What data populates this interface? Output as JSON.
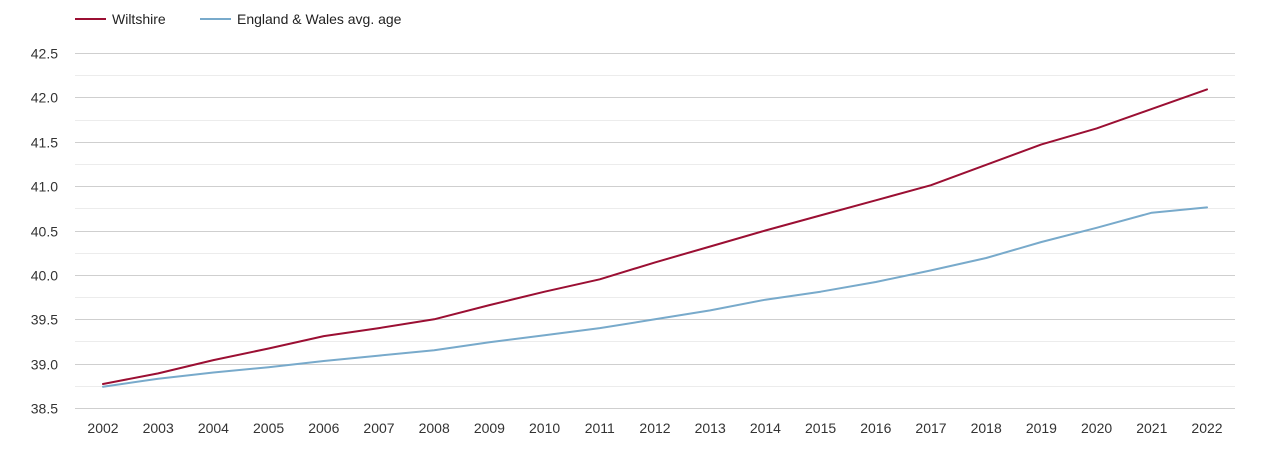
{
  "chart_data": {
    "type": "line",
    "title": "",
    "xlabel": "",
    "ylabel": "",
    "legend_position": "top-left",
    "grid": true,
    "x": [
      "2002",
      "2003",
      "2004",
      "2005",
      "2006",
      "2007",
      "2008",
      "2009",
      "2010",
      "2011",
      "2012",
      "2013",
      "2014",
      "2015",
      "2016",
      "2017",
      "2018",
      "2019",
      "2020",
      "2021",
      "2022"
    ],
    "ylim": [
      38.5,
      42.5
    ],
    "yticks": [
      "38.5",
      "39.0",
      "39.5",
      "40.0",
      "40.5",
      "41.0",
      "41.5",
      "42.0",
      "42.5"
    ],
    "series": [
      {
        "name": "Wiltshire",
        "color": "#9b0f33",
        "values": [
          38.77,
          38.89,
          39.04,
          39.17,
          39.31,
          39.4,
          39.5,
          39.66,
          39.81,
          39.95,
          40.14,
          40.32,
          40.5,
          40.67,
          40.84,
          41.01,
          41.24,
          41.47,
          41.65,
          41.87,
          42.09
        ]
      },
      {
        "name": "England & Wales avg. age",
        "color": "#78aacb",
        "values": [
          38.74,
          38.83,
          38.9,
          38.96,
          39.03,
          39.09,
          39.15,
          39.24,
          39.32,
          39.4,
          39.5,
          39.6,
          39.72,
          39.81,
          39.92,
          40.05,
          40.19,
          40.37,
          40.53,
          40.7,
          40.76
        ]
      }
    ]
  }
}
